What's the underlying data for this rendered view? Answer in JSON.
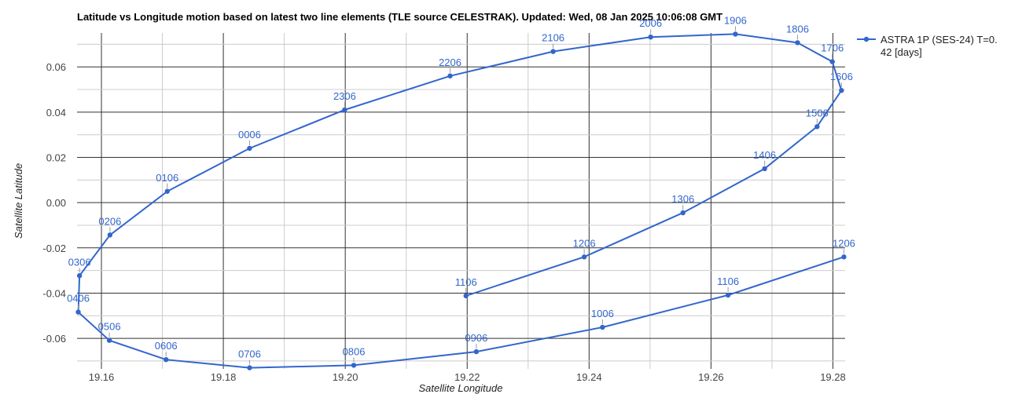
{
  "chart_data": {
    "type": "line",
    "title": "Latitude vs Longitude motion based on latest two line elements (TLE source CELESTRAK). Updated: Wed, 08 Jan 2025 10:06:08 GMT",
    "xlabel": "Satellite Longitude",
    "ylabel": "Satellite Latitude",
    "xlim": [
      19.156,
      19.282
    ],
    "ylim": [
      -0.0735,
      0.075
    ],
    "x_ticks": [
      "19.16",
      "19.18",
      "19.20",
      "19.22",
      "19.24",
      "19.26",
      "19.28"
    ],
    "x_tick_values": [
      19.16,
      19.18,
      19.2,
      19.22,
      19.24,
      19.26,
      19.28
    ],
    "y_ticks": [
      "0.06",
      "0.04",
      "0.02",
      "0.00",
      "-0.02",
      "-0.04",
      "-0.06"
    ],
    "y_tick_values": [
      0.06,
      0.04,
      0.02,
      0.0,
      -0.02,
      -0.04,
      -0.06
    ],
    "grid": true,
    "legend_position": "right",
    "series": [
      {
        "name": "ASTRA 1P (SES-24) T=0.42 [days]",
        "color": "#3366cc",
        "points": [
          {
            "x": 19.2198,
            "y": -0.0412,
            "label": "1106"
          },
          {
            "x": 19.2392,
            "y": -0.024,
            "label": "1206"
          },
          {
            "x": 19.2554,
            "y": -0.0045,
            "label": "1306"
          },
          {
            "x": 19.2688,
            "y": 0.015,
            "label": "1406"
          },
          {
            "x": 19.2774,
            "y": 0.0336,
            "label": "1506"
          },
          {
            "x": 19.2814,
            "y": 0.0496,
            "label": "1606"
          },
          {
            "x": 19.2799,
            "y": 0.0623,
            "label": "1706"
          },
          {
            "x": 19.2742,
            "y": 0.0707,
            "label": "1806"
          },
          {
            "x": 19.264,
            "y": 0.0745,
            "label": "1906"
          },
          {
            "x": 19.2501,
            "y": 0.0732,
            "label": "2006"
          },
          {
            "x": 19.2341,
            "y": 0.0668,
            "label": "2106"
          },
          {
            "x": 19.2172,
            "y": 0.056,
            "label": "2206"
          },
          {
            "x": 19.1999,
            "y": 0.041,
            "label": "2306"
          },
          {
            "x": 19.1843,
            "y": 0.024,
            "label": "0006"
          },
          {
            "x": 19.1708,
            "y": 0.005,
            "label": "0106"
          },
          {
            "x": 19.1614,
            "y": -0.0143,
            "label": "0206"
          },
          {
            "x": 19.1564,
            "y": -0.0323,
            "label": "0306"
          },
          {
            "x": 19.1562,
            "y": -0.0484,
            "label": "0406"
          },
          {
            "x": 19.1613,
            "y": -0.0609,
            "label": "0506"
          },
          {
            "x": 19.1706,
            "y": -0.0694,
            "label": "0606"
          },
          {
            "x": 19.1843,
            "y": -0.073,
            "label": "0706"
          },
          {
            "x": 19.2014,
            "y": -0.0719,
            "label": "0806"
          },
          {
            "x": 19.2215,
            "y": -0.0659,
            "label": "0906"
          },
          {
            "x": 19.2422,
            "y": -0.0551,
            "label": "1006"
          },
          {
            "x": 19.2628,
            "y": -0.0409,
            "label": "1106"
          },
          {
            "x": 19.2818,
            "y": -0.024,
            "label": "1206"
          }
        ]
      }
    ]
  }
}
